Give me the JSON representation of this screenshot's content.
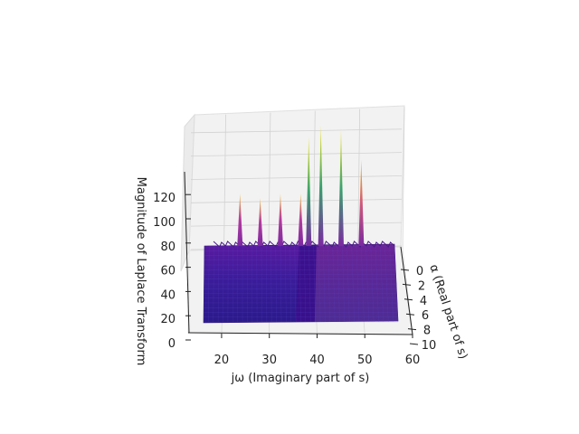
{
  "chart_data": {
    "type": "surface3d",
    "title": "",
    "xlabel": "jω (Imaginary part of s)",
    "ylabel": "α (Real part of s)",
    "zlabel": "Magnitude of Laplace Transform",
    "x_ticks": [
      20,
      30,
      40,
      50,
      60
    ],
    "y_ticks": [
      0,
      2,
      4,
      6,
      8,
      10
    ],
    "z_ticks": [
      0,
      20,
      40,
      60,
      80,
      100,
      120
    ],
    "xlim": [
      13,
      60
    ],
    "ylim": [
      -1,
      10
    ],
    "zlim": [
      0,
      135
    ],
    "colormap": "plasma",
    "baseline_magnitude": 77,
    "peaks": [
      {
        "x": 20,
        "value": 100
      },
      {
        "x": 25,
        "value": 98
      },
      {
        "x": 30,
        "value": 100
      },
      {
        "x": 35,
        "value": 100
      },
      {
        "x": 37,
        "value": 125
      },
      {
        "x": 40,
        "value": 130
      },
      {
        "x": 45,
        "value": 128
      },
      {
        "x": 50,
        "value": 115
      }
    ],
    "grid": true
  }
}
